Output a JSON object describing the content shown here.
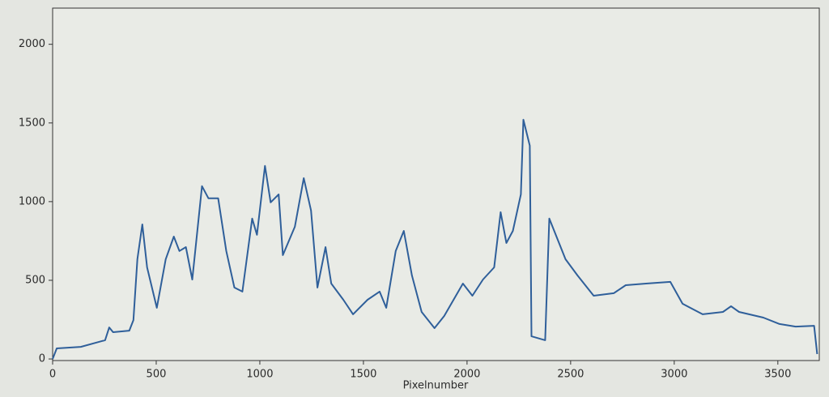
{
  "chart_data": {
    "type": "line",
    "x_label": "Pixelnumber",
    "xlim": [
      0,
      3700
    ],
    "ylim": [
      -10,
      2230
    ],
    "xticks": [
      0,
      500,
      1000,
      1500,
      2000,
      2500,
      3000,
      3500
    ],
    "yticks": [
      0,
      500,
      1000,
      1500,
      2000
    ],
    "series": [
      {
        "color": "#2f5f9a",
        "x": [
          0,
          20,
          136,
          253,
          273,
          292,
          370,
          390,
          409,
          433,
          456,
          503,
          546,
          585,
          612,
          643,
          674,
          721,
          752,
          799,
          838,
          877,
          916,
          963,
          986,
          1025,
          1052,
          1091,
          1111,
          1169,
          1212,
          1247,
          1278,
          1317,
          1345,
          1403,
          1450,
          1520,
          1578,
          1610,
          1656,
          1695,
          1734,
          1781,
          1843,
          1890,
          1980,
          2026,
          2077,
          2131,
          2162,
          2190,
          2221,
          2260,
          2272,
          2303,
          2311,
          2377,
          2397,
          2475,
          2533,
          2611,
          2708,
          2766,
          2864,
          2981,
          3040,
          3137,
          3235,
          3274,
          3313,
          3430,
          3508,
          3586,
          3675,
          3690
        ],
        "values": [
          0,
          67,
          77,
          119,
          200,
          170,
          180,
          247,
          634,
          855,
          582,
          325,
          634,
          778,
          686,
          711,
          505,
          1098,
          1021,
          1021,
          686,
          454,
          428,
          892,
          789,
          1227,
          995,
          1046,
          660,
          840,
          1149,
          943,
          454,
          711,
          479,
          376,
          284,
          376,
          428,
          325,
          686,
          814,
          531,
          299,
          196,
          273,
          479,
          402,
          505,
          582,
          933,
          737,
          814,
          1046,
          1521,
          1356,
          144,
          119,
          892,
          634,
          531,
          402,
          418,
          469,
          479,
          490,
          351,
          284,
          299,
          335,
          299,
          263,
          222,
          206,
          211,
          31
        ]
      }
    ]
  }
}
